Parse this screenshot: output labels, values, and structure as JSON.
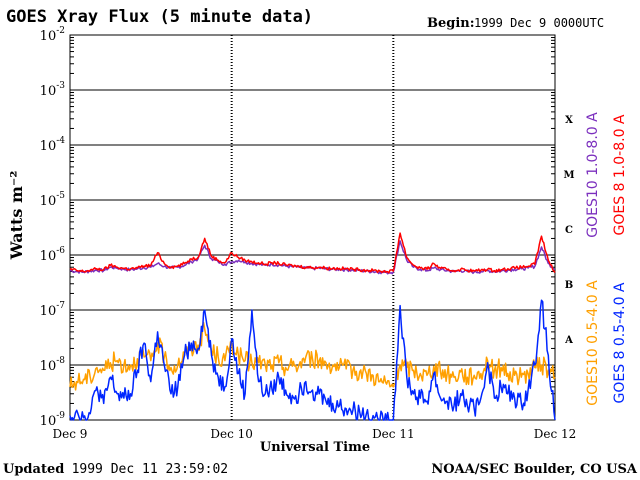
{
  "title": "GOES Xray Flux (5 minute data)",
  "begin_label": "Begin:",
  "begin_value": "1999 Dec 9 0000UTC",
  "updated_label": "Updated",
  "updated_value": "1999 Dec 11 23:59:02",
  "credit": "NOAA/SEC Boulder, CO USA",
  "chart_data": {
    "type": "line",
    "xlabel": "Universal Time",
    "ylabel": "Watts m⁻²",
    "yscale": "log",
    "ylim": [
      1e-09,
      0.01
    ],
    "y_ticks": [
      {
        "value": 1e-09,
        "base": "10",
        "exp": "-9"
      },
      {
        "value": 1e-08,
        "base": "10",
        "exp": "-8"
      },
      {
        "value": 1e-07,
        "base": "10",
        "exp": "-7"
      },
      {
        "value": 1e-06,
        "base": "10",
        "exp": "-6"
      },
      {
        "value": 1e-05,
        "base": "10",
        "exp": "-5"
      },
      {
        "value": 0.0001,
        "base": "10",
        "exp": "-4"
      },
      {
        "value": 0.001,
        "base": "10",
        "exp": "-3"
      },
      {
        "value": 0.01,
        "base": "10",
        "exp": "-2"
      }
    ],
    "xlim_hours": [
      0,
      72
    ],
    "x_ticks": [
      {
        "hour": 0,
        "label": "Dec 9"
      },
      {
        "hour": 24,
        "label": "Dec 10"
      },
      {
        "hour": 48,
        "label": "Dec 11"
      },
      {
        "hour": 72,
        "label": "Dec 12"
      }
    ],
    "flare_classes": [
      {
        "label": "X",
        "value": 0.0003
      },
      {
        "label": "M",
        "value": 3e-05
      },
      {
        "label": "C",
        "value": 3e-06
      },
      {
        "label": "B",
        "value": 3e-07
      },
      {
        "label": "A",
        "value": 3e-08
      }
    ],
    "grid": true,
    "legend": [
      {
        "name": "GOES10 1.0-8.0 A",
        "color": "#7b2fbe"
      },
      {
        "name": "GOES 8 1.0-8.0 A",
        "color": "#ff0000"
      },
      {
        "name": "GOES10 0.5-4.0 A",
        "color": "#ffa000"
      },
      {
        "name": "GOES 8 0.5-4.0 A",
        "color": "#0026ff"
      }
    ],
    "series": [
      {
        "name": "GOES10 1.0-8.0 A",
        "color": "#7b2fbe",
        "x": [
          0,
          1,
          2,
          3,
          4,
          5,
          6,
          7,
          8,
          9,
          10,
          11,
          12,
          13,
          14,
          15,
          16,
          17,
          18,
          19,
          20,
          21,
          22,
          23,
          24,
          25,
          26,
          27,
          28,
          29,
          30,
          31,
          32,
          33,
          34,
          35,
          36,
          37,
          38,
          39,
          40,
          41,
          42,
          43,
          44,
          45,
          46,
          47,
          48,
          49,
          50,
          51,
          52,
          53,
          54,
          55,
          56,
          57,
          58,
          59,
          60,
          61,
          62,
          63,
          64,
          65,
          66,
          67,
          68,
          69,
          70,
          71,
          72
        ],
        "y": [
          5.2e-07,
          5e-07,
          4.9e-07,
          5.1e-07,
          5.3e-07,
          5.2e-07,
          6e-07,
          5.8e-07,
          5.5e-07,
          5.4e-07,
          5.6e-07,
          5.9e-07,
          6e-07,
          7e-07,
          6.2e-07,
          5.8e-07,
          6e-07,
          6.5e-07,
          7.5e-07,
          8.5e-07,
          1.5e-06,
          8.5e-07,
          7.5e-07,
          6.8e-07,
          7.5e-07,
          8e-07,
          7.5e-07,
          7e-07,
          6.8e-07,
          6.5e-07,
          6.8e-07,
          6.6e-07,
          6.3e-07,
          6.1e-07,
          6e-07,
          5.8e-07,
          5.7e-07,
          5.8e-07,
          5.6e-07,
          5.5e-07,
          5.5e-07,
          5.4e-07,
          5.3e-07,
          5.2e-07,
          5.1e-07,
          5e-07,
          4.9e-07,
          4.8e-07,
          4.9e-07,
          1.8e-06,
          8e-07,
          6e-07,
          5.5e-07,
          5.2e-07,
          5.8e-07,
          5.4e-07,
          5.2e-07,
          5e-07,
          5.2e-07,
          5e-07,
          4.9e-07,
          5e-07,
          5.2e-07,
          5e-07,
          5.1e-07,
          5.3e-07,
          5.5e-07,
          5.6e-07,
          5.8e-07,
          6.2e-07,
          1.4e-06,
          7e-07,
          5.5e-07
        ]
      },
      {
        "name": "GOES 8 1.0-8.0 A",
        "color": "#ff0000",
        "x": [
          0,
          1,
          2,
          3,
          4,
          5,
          6,
          7,
          8,
          9,
          10,
          11,
          12,
          13,
          14,
          15,
          16,
          17,
          18,
          19,
          20,
          21,
          22,
          23,
          24,
          25,
          26,
          27,
          28,
          29,
          30,
          31,
          32,
          33,
          34,
          35,
          36,
          37,
          38,
          39,
          40,
          41,
          42,
          43,
          44,
          45,
          46,
          47,
          48,
          49,
          50,
          51,
          52,
          53,
          54,
          55,
          56,
          57,
          58,
          59,
          60,
          61,
          62,
          63,
          64,
          65,
          66,
          67,
          68,
          69,
          70,
          71,
          72
        ],
        "y": [
          5.5e-07,
          5.2e-07,
          5e-07,
          5.3e-07,
          5.6e-07,
          5.4e-07,
          6.5e-07,
          6e-07,
          5.7e-07,
          5.6e-07,
          5.8e-07,
          6.3e-07,
          6.5e-07,
          1.1e-06,
          7e-07,
          6e-07,
          6.3e-07,
          7e-07,
          8.5e-07,
          9e-07,
          2e-06,
          9.5e-07,
          8e-07,
          7.2e-07,
          1.1e-06,
          9e-07,
          8e-07,
          7.5e-07,
          7.2e-07,
          6.8e-07,
          7.2e-07,
          7e-07,
          6.6e-07,
          6.4e-07,
          6.2e-07,
          6e-07,
          5.9e-07,
          6e-07,
          5.8e-07,
          5.7e-07,
          5.7e-07,
          5.6e-07,
          5.5e-07,
          5.4e-07,
          5.3e-07,
          5.2e-07,
          5.1e-07,
          5e-07,
          5.1e-07,
          2.5e-06,
          9e-07,
          6.5e-07,
          5.8e-07,
          5.5e-07,
          7e-07,
          5.7e-07,
          5.4e-07,
          5.2e-07,
          5.5e-07,
          5.3e-07,
          5.1e-07,
          5.3e-07,
          5.5e-07,
          5.2e-07,
          5.4e-07,
          5.6e-07,
          5.8e-07,
          6e-07,
          6.2e-07,
          6.8e-07,
          2.2e-06,
          8e-07,
          4.8e-07
        ]
      },
      {
        "name": "GOES10 0.5-4.0 A",
        "color": "#ffa000",
        "x": [
          0,
          1,
          2,
          3,
          4,
          5,
          6,
          7,
          8,
          9,
          10,
          11,
          12,
          13,
          14,
          15,
          16,
          17,
          18,
          19,
          20,
          21,
          22,
          23,
          24,
          25,
          26,
          27,
          28,
          29,
          30,
          31,
          32,
          33,
          34,
          35,
          36,
          37,
          38,
          39,
          40,
          41,
          42,
          43,
          44,
          45,
          46,
          47,
          48,
          49,
          50,
          51,
          52,
          53,
          54,
          55,
          56,
          57,
          58,
          59,
          60,
          61,
          62,
          63,
          64,
          65,
          66,
          67,
          68,
          69,
          70,
          71,
          72
        ],
        "y": [
          4e-09,
          5e-09,
          5.5e-09,
          6e-09,
          9e-09,
          8e-09,
          1.1e-08,
          1.2e-08,
          1e-08,
          1e-08,
          1.3e-08,
          1.4e-08,
          1.2e-08,
          2.5e-08,
          1.4e-08,
          9e-09,
          1e-08,
          1.5e-08,
          2e-08,
          2.3e-08,
          4.5e-08,
          1.8e-08,
          1.4e-08,
          1.2e-08,
          2.5e-08,
          1.5e-08,
          1.2e-08,
          1.1e-08,
          1.1e-08,
          1e-08,
          1e-08,
          1.1e-08,
          9e-09,
          9.5e-09,
          1e-08,
          1.4e-08,
          1.3e-08,
          1.2e-08,
          1.1e-08,
          1e-08,
          9e-09,
          8.5e-09,
          8e-09,
          7.5e-09,
          7e-09,
          6.5e-09,
          5e-09,
          4.5e-09,
          4e-09,
          1e-08,
          9e-09,
          8e-09,
          7e-09,
          6.5e-09,
          9.5e-09,
          7.5e-09,
          7e-09,
          6e-09,
          7.5e-09,
          6e-09,
          6.5e-09,
          7e-09,
          1.2e-08,
          8e-09,
          9e-09,
          7e-09,
          6.5e-09,
          6e-09,
          7e-09,
          9e-09,
          1e-08,
          8e-09,
          6e-09
        ]
      },
      {
        "name": "GOES 8 0.5-4.0 A",
        "color": "#0026ff",
        "x": [
          0,
          1,
          2,
          3,
          4,
          5,
          6,
          7,
          8,
          9,
          10,
          11,
          12,
          13,
          14,
          15,
          16,
          17,
          18,
          19,
          20,
          21,
          22,
          23,
          24,
          25,
          26,
          27,
          28,
          29,
          30,
          31,
          32,
          33,
          34,
          35,
          36,
          37,
          38,
          39,
          40,
          41,
          42,
          43,
          44,
          45,
          46,
          47,
          48,
          49,
          50,
          51,
          52,
          53,
          54,
          55,
          56,
          57,
          58,
          59,
          60,
          61,
          62,
          63,
          64,
          65,
          66,
          67,
          68,
          69,
          70,
          71,
          72
        ],
        "y": [
          1.2e-09,
          1.5e-09,
          1.1e-09,
          1.3e-09,
          4e-09,
          2e-09,
          6e-09,
          3e-09,
          2.5e-09,
          3e-09,
          8e-09,
          2.5e-08,
          5e-09,
          4e-08,
          1e-08,
          3e-09,
          4e-09,
          1.5e-08,
          2.5e-08,
          2e-08,
          1e-07,
          1.5e-08,
          6e-09,
          4e-09,
          3e-08,
          7e-09,
          3e-09,
          1e-07,
          5e-09,
          3e-09,
          3.5e-09,
          6e-09,
          3.5e-09,
          2.8e-09,
          3e-09,
          5e-09,
          3.5e-09,
          3e-09,
          2.2e-09,
          2e-09,
          1.8e-09,
          1.6e-09,
          1.5e-09,
          1.4e-09,
          1.3e-09,
          1.2e-09,
          1e-09,
          9e-10,
          1e-09,
          1.2e-07,
          6e-09,
          3e-09,
          2.5e-09,
          2.2e-09,
          7e-09,
          2.5e-09,
          2.2e-09,
          1.8e-09,
          3e-09,
          1.8e-09,
          1.6e-09,
          2.5e-09,
          1.1e-08,
          2.5e-09,
          4e-09,
          3e-09,
          2.5e-09,
          2e-09,
          3.5e-09,
          1e-08,
          1.5e-07,
          1.5e-08,
          1e-09
        ]
      }
    ]
  }
}
